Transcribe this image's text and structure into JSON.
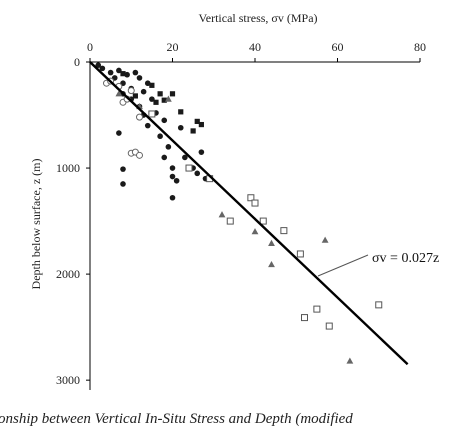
{
  "chart_data": {
    "type": "scatter",
    "title": "",
    "xlabel": "Vertical stress, σv (MPa)",
    "ylabel": "Depth below surface, z (m)",
    "xlim": [
      0,
      80
    ],
    "ylim": [
      3000,
      0
    ],
    "x_axis_position": "top",
    "x_ticks": [
      "0",
      "20",
      "40",
      "60",
      "80"
    ],
    "y_ticks": [
      "0",
      "1000",
      "2000",
      "3000"
    ],
    "grid": false,
    "legend": "none",
    "trend_line": {
      "label": "σv = 0.027z",
      "slope": 0.027,
      "x": [
        0,
        77
      ],
      "y": [
        0,
        2850
      ]
    },
    "series": [
      {
        "marker": "filled-circle",
        "points": [
          [
            2,
            30
          ],
          [
            3,
            60
          ],
          [
            5,
            100
          ],
          [
            6,
            150
          ],
          [
            7,
            80
          ],
          [
            8,
            200
          ],
          [
            8,
            300
          ],
          [
            9,
            120
          ],
          [
            10,
            250
          ],
          [
            10,
            350
          ],
          [
            11,
            100
          ],
          [
            12,
            150
          ],
          [
            12,
            420
          ],
          [
            13,
            280
          ],
          [
            13,
            500
          ],
          [
            14,
            200
          ],
          [
            14,
            600
          ],
          [
            15,
            350
          ],
          [
            16,
            480
          ],
          [
            17,
            700
          ],
          [
            18,
            550
          ],
          [
            18,
            900
          ],
          [
            19,
            800
          ],
          [
            20,
            1000
          ],
          [
            20,
            1080
          ],
          [
            21,
            1120
          ],
          [
            22,
            620
          ],
          [
            23,
            900
          ],
          [
            25,
            1000
          ],
          [
            26,
            1050
          ],
          [
            27,
            850
          ],
          [
            28,
            1100
          ],
          [
            20,
            1280
          ],
          [
            7,
            670
          ],
          [
            8,
            1010
          ],
          [
            8,
            1150
          ]
        ]
      },
      {
        "marker": "filled-square",
        "points": [
          [
            8,
            110
          ],
          [
            11,
            320
          ],
          [
            15,
            220
          ],
          [
            16,
            380
          ],
          [
            17,
            300
          ],
          [
            18,
            360
          ],
          [
            20,
            300
          ],
          [
            22,
            470
          ],
          [
            25,
            650
          ],
          [
            26,
            560
          ],
          [
            27,
            590
          ]
        ]
      },
      {
        "marker": "open-circle",
        "points": [
          [
            4,
            200
          ],
          [
            5,
            180
          ],
          [
            7,
            230
          ],
          [
            8,
            380
          ],
          [
            9,
            350
          ],
          [
            10,
            270
          ],
          [
            12,
            520
          ],
          [
            10,
            860
          ],
          [
            11,
            850
          ],
          [
            12,
            880
          ]
        ]
      },
      {
        "marker": "filled-triangle",
        "points": [
          [
            7,
            300
          ],
          [
            12,
            420
          ],
          [
            19,
            350
          ],
          [
            32,
            1440
          ],
          [
            40,
            1600
          ],
          [
            44,
            1710
          ],
          [
            44,
            1910
          ],
          [
            57,
            1680
          ],
          [
            63,
            2820
          ]
        ]
      },
      {
        "marker": "open-square",
        "points": [
          [
            15,
            490
          ],
          [
            24,
            1000
          ],
          [
            29,
            1100
          ],
          [
            34,
            1500
          ],
          [
            39,
            1280
          ],
          [
            40,
            1330
          ],
          [
            42,
            1500
          ],
          [
            47,
            1590
          ],
          [
            52,
            2410
          ],
          [
            55,
            2330
          ],
          [
            58,
            2490
          ],
          [
            70,
            2290
          ],
          [
            51,
            1810
          ]
        ]
      }
    ]
  },
  "caption": {
    "text": "lationship between Vertical In-Situ Stress and Depth (modified"
  }
}
